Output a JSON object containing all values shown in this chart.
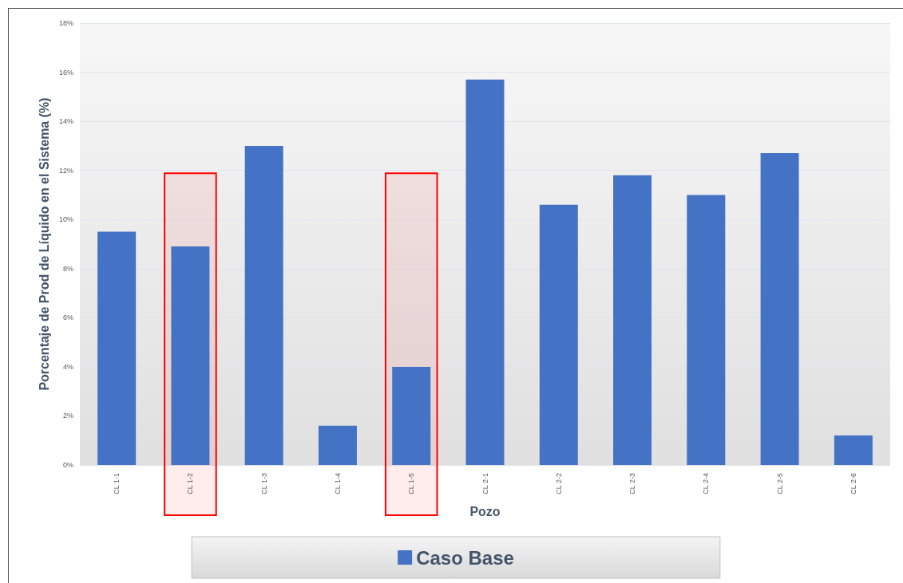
{
  "chart_data": {
    "type": "bar",
    "categories": [
      "CL 1-1",
      "CL 1-2",
      "CL 1-3",
      "CL 1-4",
      "CL 1-5",
      "CL 2-1",
      "CL 2-2",
      "CL 2-3",
      "CL 2-4",
      "CL 2-5",
      "CL 2-6"
    ],
    "series": [
      {
        "name": "Caso Base",
        "color": "#4472c4",
        "values": [
          9.5,
          8.9,
          13.0,
          1.6,
          4.0,
          15.7,
          10.6,
          11.8,
          11.0,
          12.7,
          1.2
        ]
      }
    ],
    "xlabel": "Pozo",
    "ylabel": "Porcentaje de Prod de Líquido en el Sistema (%)",
    "ylim": [
      0,
      18
    ],
    "yticks": [
      {
        "value": 0,
        "label": "0%"
      },
      {
        "value": 2,
        "label": "2%"
      },
      {
        "value": 4,
        "label": "4%"
      },
      {
        "value": 6,
        "label": "6%"
      },
      {
        "value": 8,
        "label": "8%"
      },
      {
        "value": 10,
        "label": "10%"
      },
      {
        "value": 12,
        "label": "12%"
      },
      {
        "value": 14,
        "label": "14%"
      },
      {
        "value": 16,
        "label": "16%"
      },
      {
        "value": 18,
        "label": "18%"
      }
    ],
    "grid": "y",
    "legend": "bottom",
    "bands": [
      {
        "axis": "x",
        "from": "CL 1-2",
        "to": "CL 1-2",
        "color": "#ff0000"
      },
      {
        "axis": "x",
        "from": "CL 1-5",
        "to": "CL 1-5",
        "color": "#ff0000"
      }
    ]
  }
}
